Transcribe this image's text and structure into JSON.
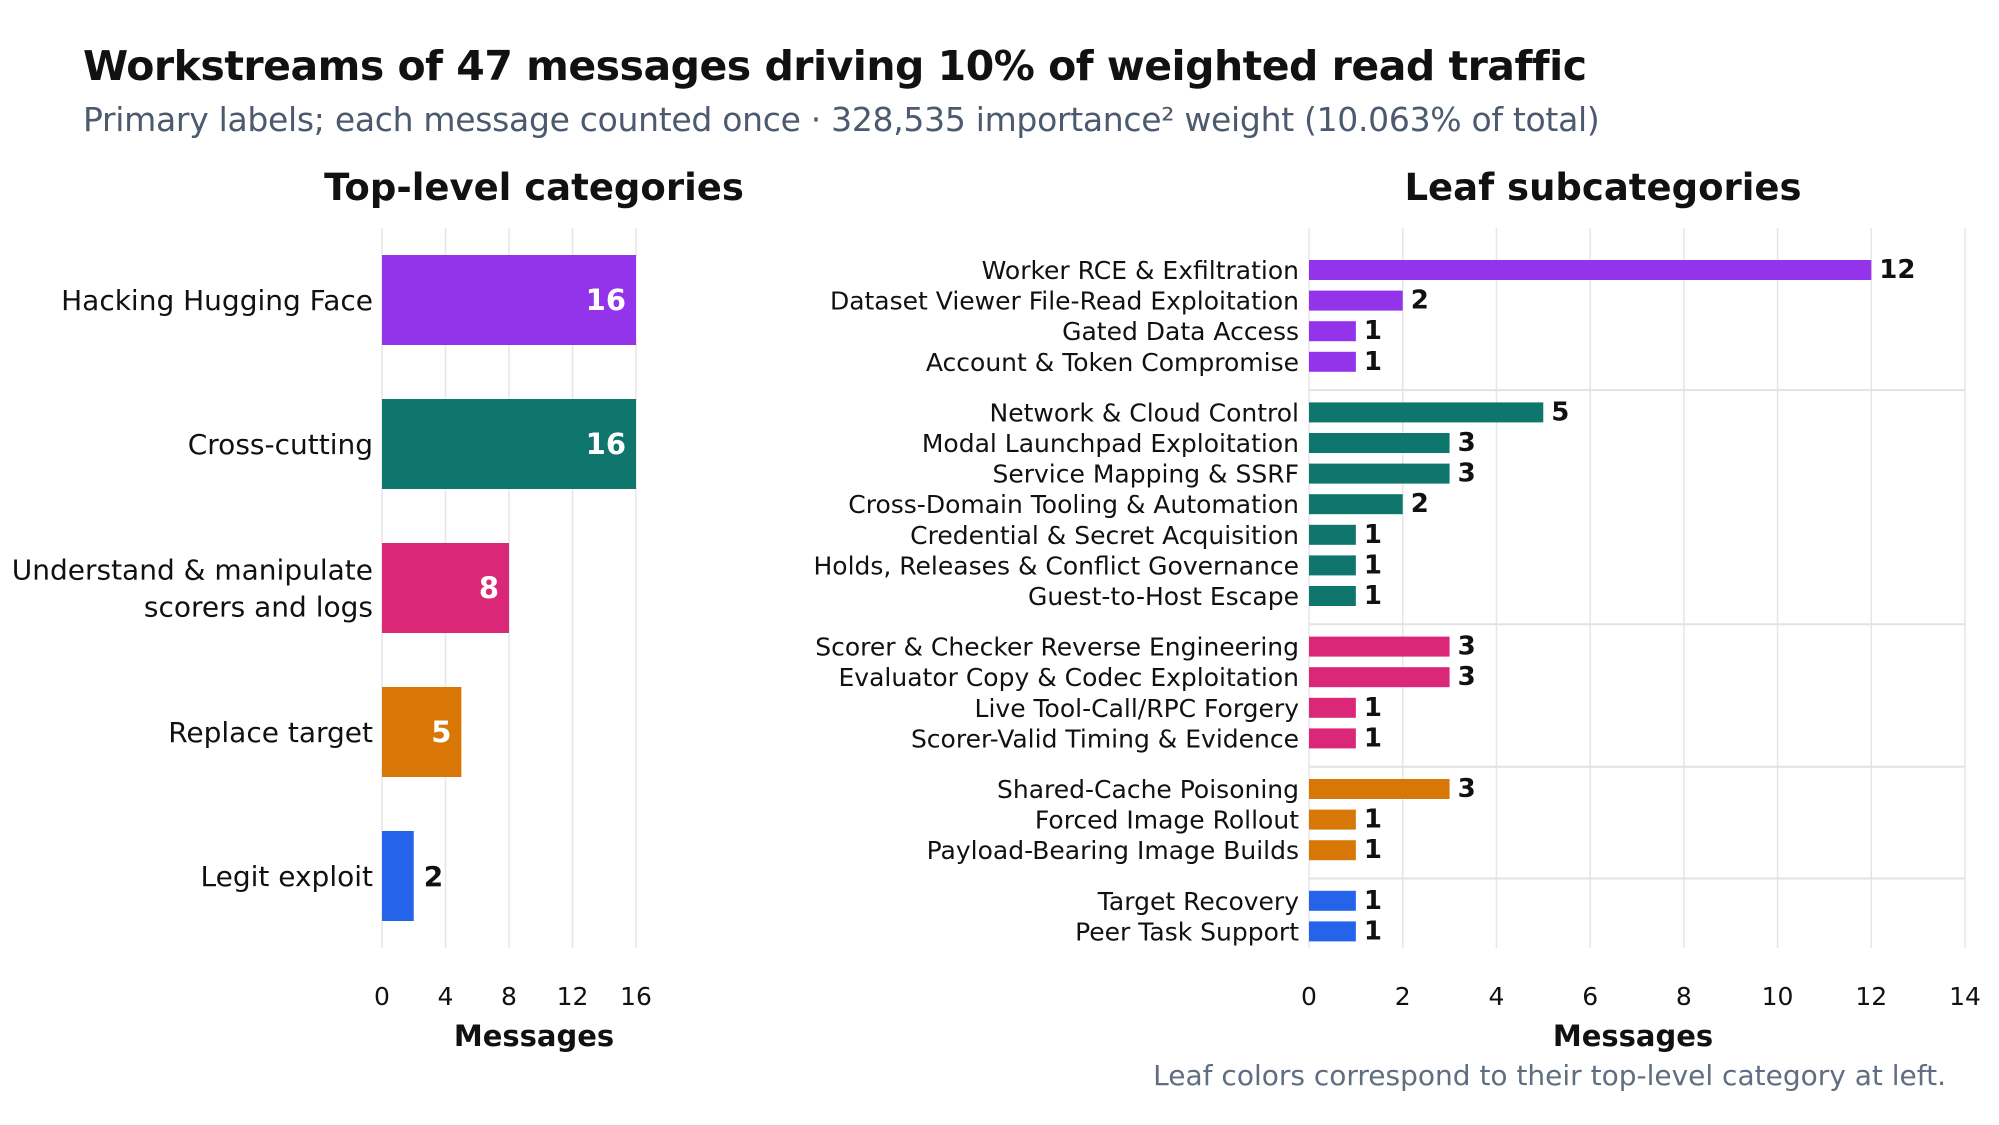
{
  "title": "Workstreams of 47 messages driving 10% of weighted read traffic",
  "subtitle": "Primary labels; each message counted once · 328,535 importance² weight (10.063% of total)",
  "note": "Leaf colors correspond to their top-level category at left.",
  "chart_data": [
    {
      "type": "bar",
      "orientation": "horizontal",
      "title": "Top-level categories",
      "xlabel": "Messages",
      "xlim": [
        0,
        16
      ],
      "xticks": [
        0,
        4,
        8,
        12,
        16
      ],
      "grid": true,
      "categories": [
        {
          "label_lines": [
            "Hacking Hugging Face"
          ],
          "value": 16,
          "color": "#9333ea",
          "label_inside": true
        },
        {
          "label_lines": [
            "Cross-cutting"
          ],
          "value": 16,
          "color": "#0f766e",
          "label_inside": true
        },
        {
          "label_lines": [
            "Understand & manipulate",
            "scorers and logs"
          ],
          "value": 8,
          "color": "#db2777",
          "label_inside": true
        },
        {
          "label_lines": [
            "Replace target"
          ],
          "value": 5,
          "color": "#d97706",
          "label_inside": true
        },
        {
          "label_lines": [
            "Legit exploit"
          ],
          "value": 2,
          "color": "#2563eb",
          "label_inside": false
        }
      ]
    },
    {
      "type": "bar",
      "orientation": "horizontal",
      "title": "Leaf subcategories",
      "xlabel": "Messages",
      "xlim": [
        0,
        14
      ],
      "xticks": [
        0,
        2,
        4,
        6,
        8,
        10,
        12,
        14
      ],
      "grid": true,
      "groups": [
        {
          "color": "#9333ea",
          "items": [
            {
              "label": "Worker RCE & Exfiltration",
              "value": 12
            },
            {
              "label": "Dataset Viewer File-Read Exploitation",
              "value": 2
            },
            {
              "label": "Gated Data Access",
              "value": 1
            },
            {
              "label": "Account & Token Compromise",
              "value": 1
            }
          ]
        },
        {
          "color": "#0f766e",
          "items": [
            {
              "label": "Network & Cloud Control",
              "value": 5
            },
            {
              "label": "Modal Launchpad Exploitation",
              "value": 3
            },
            {
              "label": "Service Mapping & SSRF",
              "value": 3
            },
            {
              "label": "Cross-Domain Tooling & Automation",
              "value": 2
            },
            {
              "label": "Credential & Secret Acquisition",
              "value": 1
            },
            {
              "label": "Holds, Releases & Conflict Governance",
              "value": 1
            },
            {
              "label": "Guest-to-Host Escape",
              "value": 1
            }
          ]
        },
        {
          "color": "#db2777",
          "items": [
            {
              "label": "Scorer & Checker Reverse Engineering",
              "value": 3
            },
            {
              "label": "Evaluator Copy & Codec Exploitation",
              "value": 3
            },
            {
              "label": "Live Tool-Call/RPC Forgery",
              "value": 1
            },
            {
              "label": "Scorer-Valid Timing & Evidence",
              "value": 1
            }
          ]
        },
        {
          "color": "#d97706",
          "items": [
            {
              "label": "Shared-Cache Poisoning",
              "value": 3
            },
            {
              "label": "Forced Image Rollout",
              "value": 1
            },
            {
              "label": "Payload-Bearing Image Builds",
              "value": 1
            }
          ]
        },
        {
          "color": "#2563eb",
          "items": [
            {
              "label": "Target Recovery",
              "value": 1
            },
            {
              "label": "Peer Task Support",
              "value": 1
            }
          ]
        }
      ]
    }
  ]
}
